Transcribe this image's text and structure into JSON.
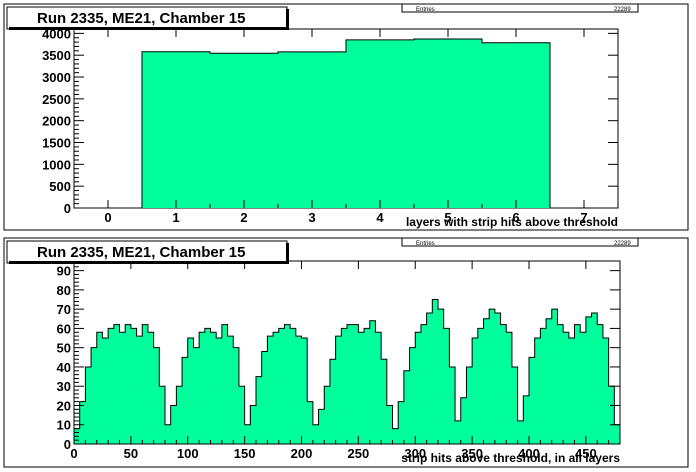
{
  "colors": {
    "fill": "#00ff9c",
    "frame": "#000000",
    "pad_bg": "#ffffff"
  },
  "chart_data": [
    {
      "type": "bar",
      "title": "Run 2335, ME21, Chamber 15",
      "xlabel": "layers with strip hits above threshold",
      "ylabel": "",
      "xlim": [
        -0.5,
        7.5
      ],
      "ylim": [
        0,
        4100
      ],
      "x_ticks": [
        "0",
        "1",
        "2",
        "3",
        "4",
        "5",
        "6",
        "7"
      ],
      "y_ticks": [
        "0",
        "500",
        "1000",
        "1500",
        "2000",
        "2500",
        "3000",
        "3500",
        "4000"
      ],
      "categories": [
        1,
        2,
        3,
        4,
        5,
        6
      ],
      "values": [
        3580,
        3545,
        3575,
        3850,
        3870,
        3785
      ],
      "stats_box": {
        "left": "Entries",
        "right": "22289"
      }
    },
    {
      "type": "area",
      "title": "Run 2335, ME21, Chamber 15",
      "xlabel": "strip hits above threshold, in all layers",
      "ylabel": "",
      "xlim": [
        0,
        480
      ],
      "ylim": [
        0,
        95
      ],
      "x_ticks": [
        "0",
        "50",
        "100",
        "150",
        "200",
        "250",
        "300",
        "350",
        "400",
        "450"
      ],
      "y_ticks": [
        "0",
        "10",
        "20",
        "30",
        "40",
        "50",
        "60",
        "70",
        "80",
        "90"
      ],
      "x": [
        0,
        5,
        10,
        15,
        20,
        25,
        30,
        35,
        40,
        45,
        50,
        55,
        60,
        65,
        70,
        75,
        80,
        85,
        90,
        95,
        100,
        105,
        110,
        115,
        120,
        125,
        130,
        135,
        140,
        145,
        150,
        155,
        160,
        165,
        170,
        175,
        180,
        185,
        190,
        195,
        200,
        205,
        210,
        215,
        220,
        225,
        230,
        235,
        240,
        245,
        250,
        255,
        260,
        265,
        270,
        275,
        280,
        285,
        290,
        295,
        300,
        305,
        310,
        315,
        320,
        325,
        330,
        335,
        340,
        345,
        350,
        355,
        360,
        365,
        370,
        375,
        380,
        385,
        390,
        395,
        400,
        405,
        410,
        415,
        420,
        425,
        430,
        435,
        440,
        445,
        450,
        455,
        460,
        465,
        470,
        475,
        480
      ],
      "values": [
        8,
        22,
        40,
        50,
        58,
        55,
        60,
        62,
        58,
        62,
        60,
        56,
        62,
        58,
        50,
        30,
        10,
        20,
        30,
        45,
        55,
        50,
        58,
        60,
        58,
        55,
        62,
        56,
        50,
        30,
        10,
        20,
        35,
        48,
        56,
        58,
        60,
        62,
        60,
        56,
        55,
        22,
        10,
        18,
        30,
        44,
        56,
        60,
        62,
        62,
        58,
        60,
        64,
        58,
        44,
        20,
        8,
        22,
        38,
        50,
        58,
        62,
        68,
        75,
        70,
        60,
        40,
        12,
        24,
        40,
        55,
        60,
        65,
        70,
        68,
        62,
        58,
        40,
        12,
        25,
        45,
        55,
        60,
        65,
        70,
        62,
        58,
        55,
        62,
        58,
        66,
        68,
        62,
        55,
        30,
        10,
        8
      ],
      "stats_box": {
        "left": "Entries",
        "right": "22289"
      }
    }
  ]
}
